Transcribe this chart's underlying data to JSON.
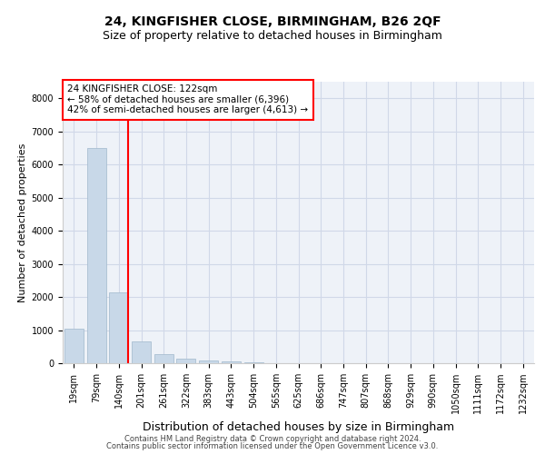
{
  "title1": "24, KINGFISHER CLOSE, BIRMINGHAM, B26 2QF",
  "title2": "Size of property relative to detached houses in Birmingham",
  "xlabel": "Distribution of detached houses by size in Birmingham",
  "ylabel": "Number of detached properties",
  "categories": [
    "19sqm",
    "79sqm",
    "140sqm",
    "201sqm",
    "261sqm",
    "322sqm",
    "383sqm",
    "443sqm",
    "504sqm",
    "565sqm",
    "625sqm",
    "686sqm",
    "747sqm",
    "807sqm",
    "868sqm",
    "929sqm",
    "990sqm",
    "1050sqm",
    "1111sqm",
    "1172sqm",
    "1232sqm"
  ],
  "values": [
    1050,
    6500,
    2150,
    650,
    280,
    130,
    90,
    60,
    40,
    10,
    5,
    5,
    5,
    0,
    0,
    0,
    0,
    0,
    0,
    0,
    0
  ],
  "bar_color": "#c8d8e8",
  "bar_edgecolor": "#a0b8cc",
  "annotation_text": "24 KINGFISHER CLOSE: 122sqm\n← 58% of detached houses are smaller (6,396)\n42% of semi-detached houses are larger (4,613) →",
  "annotation_box_color": "white",
  "annotation_box_edgecolor": "red",
  "vline_color": "red",
  "vline_x": 2.43,
  "footer1": "Contains HM Land Registry data © Crown copyright and database right 2024.",
  "footer2": "Contains public sector information licensed under the Open Government Licence v3.0.",
  "ylim": [
    0,
    8500
  ],
  "yticks": [
    0,
    1000,
    2000,
    3000,
    4000,
    5000,
    6000,
    7000,
    8000
  ],
  "grid_color": "#d0d8e8",
  "bg_color": "#eef2f8",
  "title1_fontsize": 10,
  "title2_fontsize": 9,
  "ylabel_fontsize": 8,
  "xlabel_fontsize": 9,
  "tick_fontsize": 7,
  "annotation_fontsize": 7.5
}
